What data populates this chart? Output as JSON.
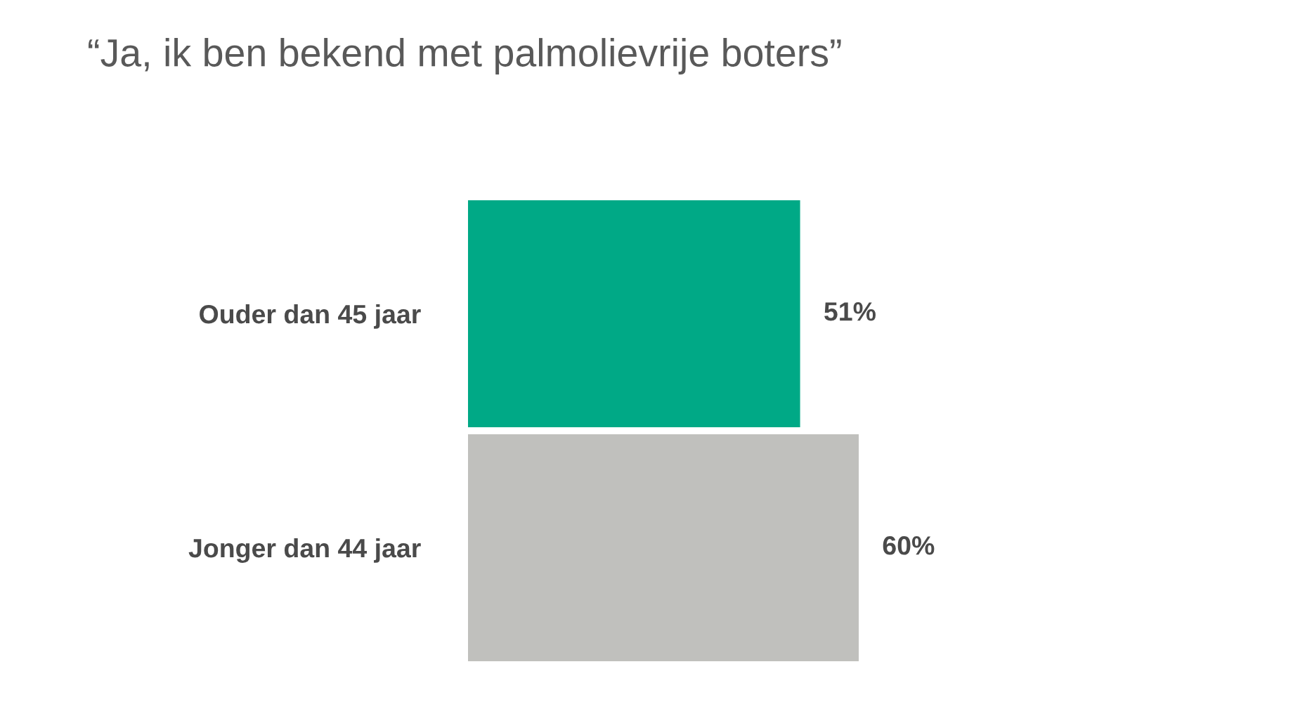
{
  "chart_data": {
    "type": "bar",
    "orientation": "horizontal",
    "title": "“Ja, ik ben bekend met palmolievrije boters”",
    "categories": [
      "Ouder dan 45 jaar",
      "Jonger dan 44 jaar"
    ],
    "values": [
      51,
      60
    ],
    "colors": [
      "#00a986",
      "#c0c0bd"
    ],
    "value_labels": [
      "51%",
      "60%"
    ],
    "grid": false,
    "legend": false
  }
}
